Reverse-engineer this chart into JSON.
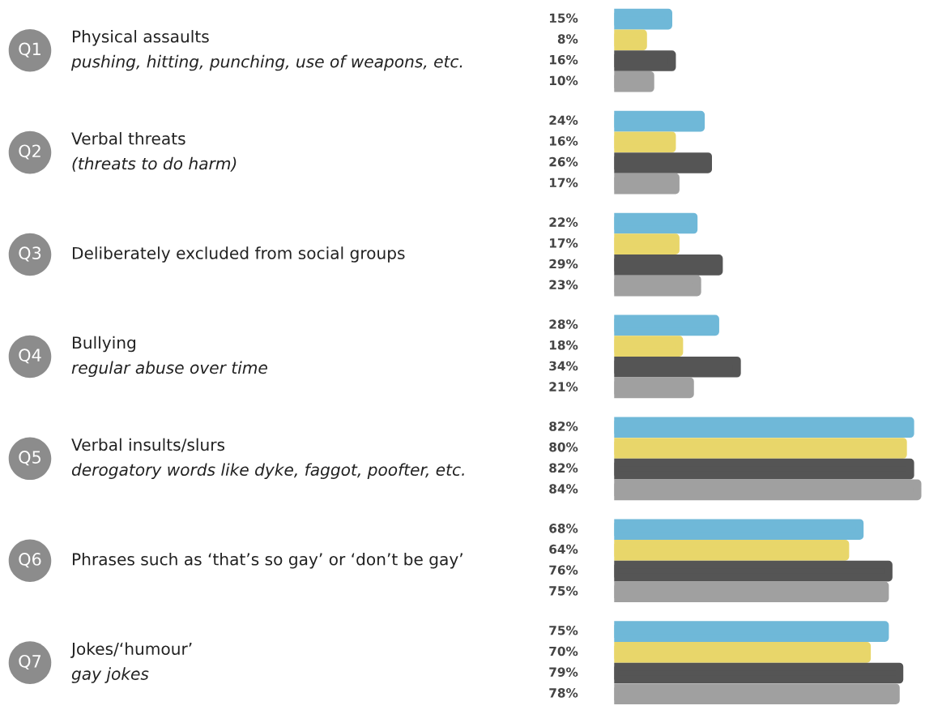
{
  "chart_data": {
    "type": "bar",
    "orientation": "horizontal",
    "categories": [
      "Q1",
      "Q2",
      "Q3",
      "Q4",
      "Q5",
      "Q6",
      "Q7"
    ],
    "annotations": [
      "Physical assaults\npushing, hitting, punching, use of weapons, etc.",
      "Verbal threats\n(threats to do harm)",
      "Deliberately excluded from social groups",
      "Bullying\nregular abuse over time",
      "Verbal insults/slurs\nderogatory words like dyke, faggot, poofter, etc.",
      "Phrases such as ‘that’s so gay’ or ‘don’t be gay’",
      "Jokes/‘humour’\ngay jokes"
    ],
    "series": [
      {
        "color": "#6fb8d8",
        "values": [
          15,
          24,
          22,
          28,
          82,
          68,
          75
        ],
        "value_labels": [
          "15%",
          "24%",
          "22%",
          "28%",
          "82%",
          "68%",
          "75%"
        ]
      },
      {
        "color": "#e8d66a",
        "values": [
          8,
          16,
          17,
          18,
          80,
          64,
          70
        ],
        "value_labels": [
          "8%",
          "16%",
          "17%",
          "18%",
          "80%",
          "64%",
          "70%"
        ]
      },
      {
        "color": "#555555",
        "values": [
          16,
          26,
          29,
          34,
          82,
          76,
          79
        ],
        "value_labels": [
          "16%",
          "26%",
          "29%",
          "34%",
          "82%",
          "76%",
          "79%"
        ]
      },
      {
        "color": "#a0a0a0",
        "values": [
          10,
          17,
          23,
          21,
          84,
          75,
          78
        ],
        "value_labels": [
          "10%",
          "17%",
          "23%",
          "21%",
          "84%",
          "75%",
          "78%"
        ]
      }
    ]
  }
}
